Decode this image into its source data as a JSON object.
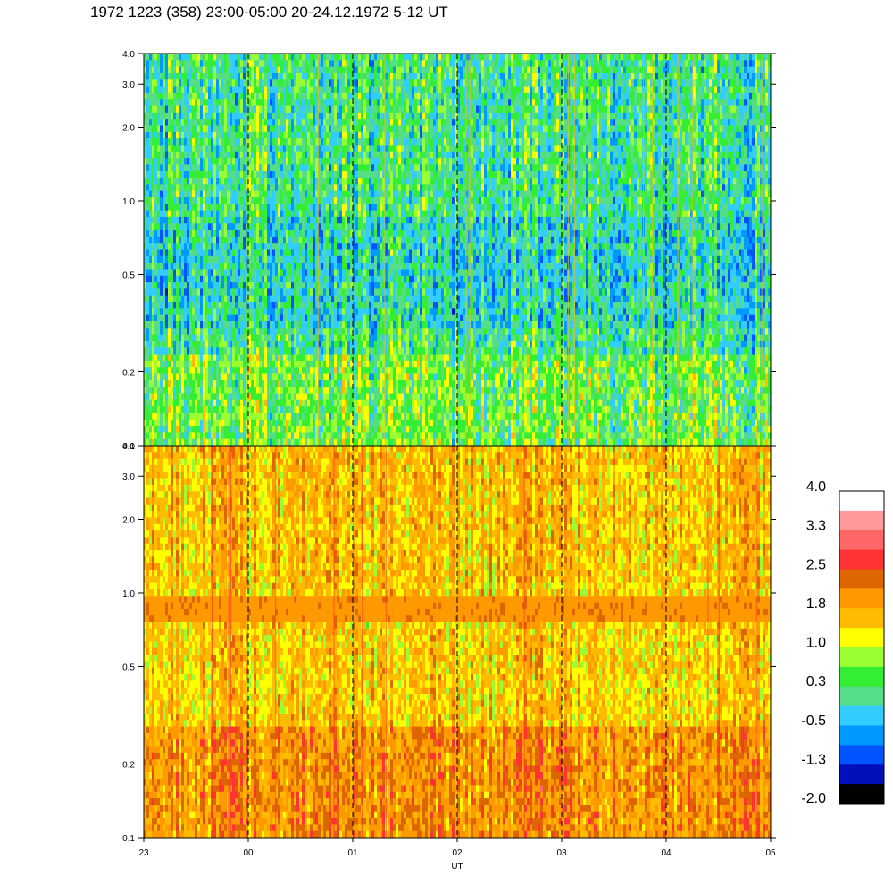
{
  "title": "1972 1223 (358) 23:00-05:00 20-24.12.1972  5-12 UT",
  "chart_data": [
    {
      "type": "heatmap",
      "panel": "upper",
      "x_tick_labels": [
        "23",
        "00",
        "01",
        "02",
        "03",
        "04",
        "05"
      ],
      "x_range_hours": [
        23,
        29
      ],
      "y_ticks": [
        0.1,
        0.2,
        0.5,
        1.0,
        2.0,
        3.0,
        4.0
      ],
      "y_tick_labels": [
        "0.1",
        "0.2",
        "0.5",
        "1.0",
        "2.0",
        "3.0",
        "4.0"
      ],
      "ylim": [
        0.1,
        4.0
      ],
      "y_scale": "log",
      "hour_gridlines": [
        "00",
        "01",
        "02",
        "03",
        "04"
      ],
      "typical_level": [
        -0.5,
        0.8
      ]
    },
    {
      "type": "heatmap",
      "panel": "lower",
      "x_tick_labels": [
        "23",
        "00",
        "01",
        "02",
        "03",
        "04",
        "05"
      ],
      "xlabel": "UT",
      "x_range_hours": [
        23,
        29
      ],
      "y_ticks": [
        0.1,
        0.2,
        0.5,
        1.0,
        2.0,
        3.0,
        4.0
      ],
      "y_tick_labels": [
        "0.1",
        "0.2",
        "0.5",
        "1.0",
        "2.0",
        "3.0",
        "4.0"
      ],
      "ylim": [
        0.1,
        4.0
      ],
      "y_scale": "log",
      "hour_gridlines": [
        "00",
        "01",
        "02",
        "03",
        "04"
      ],
      "typical_level": [
        1.0,
        2.0
      ],
      "band_frequency_range": [
        0.75,
        0.95
      ]
    }
  ],
  "colorbar": {
    "labels": [
      "4.0",
      "3.3",
      "2.5",
      "1.8",
      "1.0",
      "0.3",
      "-0.5",
      "-1.3",
      "-2.0"
    ],
    "colors": [
      "#ffffff",
      "#ff9999",
      "#ff6666",
      "#ff3333",
      "#dd6600",
      "#ff9900",
      "#ffbb00",
      "#ffff00",
      "#99ff33",
      "#33ee33",
      "#55dd88",
      "#33ccff",
      "#0099ff",
      "#0055ff",
      "#0011bb",
      "#000000"
    ]
  }
}
